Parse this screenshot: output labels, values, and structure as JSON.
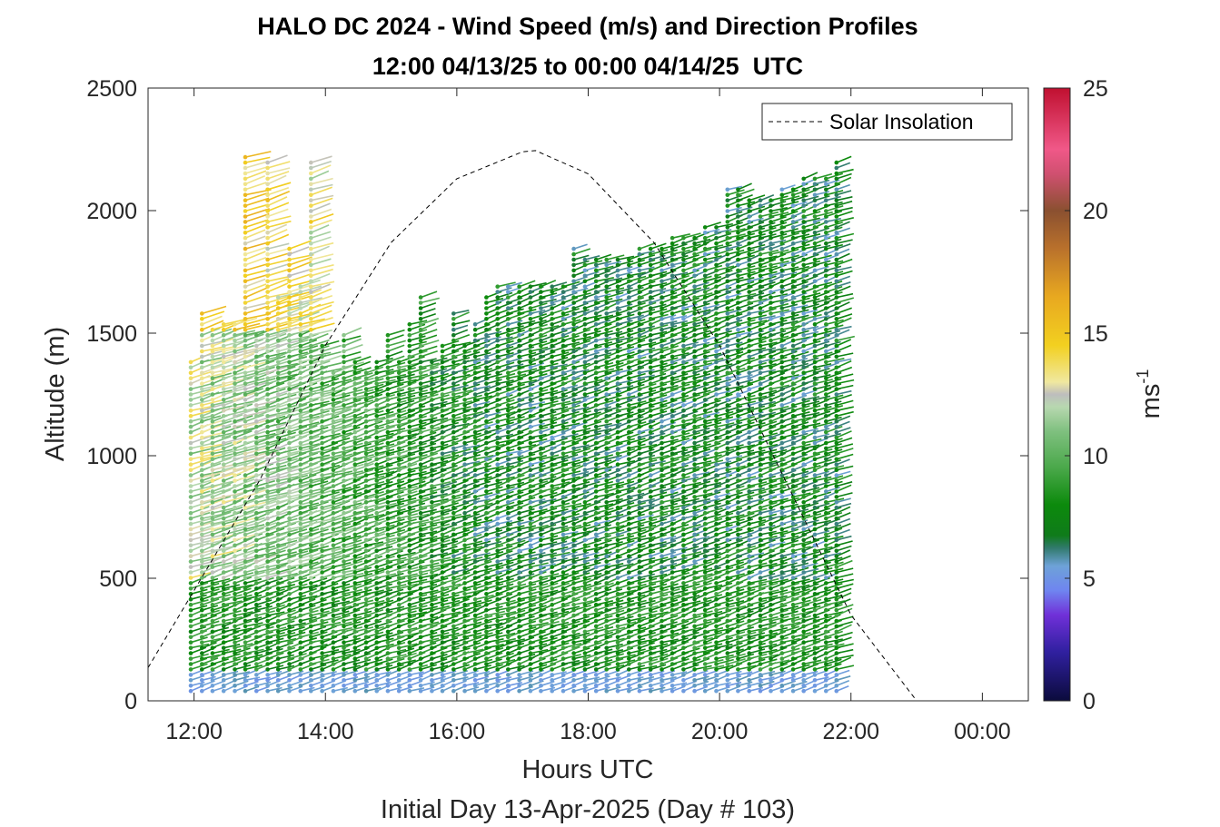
{
  "chart_data": {
    "type": "scatter",
    "title": "HALO DC 2024 - Wind Speed (m/s) and Direction Profiles",
    "subtitle": "12:00 04/13/25 to 00:00 04/14/25  UTC",
    "xlabel": "Hours UTC",
    "footer": "Initial Day 13-Apr-2025 (Day # 103)",
    "ylabel": "Altitude (m)",
    "colorbar_label": "ms",
    "colorbar_label_sup": "-1",
    "xlim": [
      11.3,
      24.7
    ],
    "ylim": [
      0,
      2500
    ],
    "x_ticks": [
      12,
      14,
      16,
      18,
      20,
      22,
      24
    ],
    "x_tick_labels": [
      "12:00",
      "14:00",
      "16:00",
      "18:00",
      "20:00",
      "22:00",
      "00:00"
    ],
    "y_ticks": [
      0,
      500,
      1000,
      1500,
      2000,
      2500
    ],
    "y_tick_labels": [
      "0",
      "500",
      "1000",
      "1500",
      "2000",
      "2500"
    ],
    "colorbar_range": [
      0,
      25
    ],
    "colorbar_ticks": [
      0,
      5,
      10,
      15,
      20,
      25
    ],
    "colorbar_tick_labels": [
      "0",
      "5",
      "10",
      "15",
      "20",
      "25"
    ],
    "legend": {
      "position": "top-right",
      "entries": [
        "Solar Insolation"
      ]
    },
    "solar_insolation": {
      "style": "dashed",
      "color": "#000000",
      "x": [
        11.3,
        12.0,
        13.0,
        14.0,
        15.0,
        16.0,
        17.0,
        17.2,
        18.0,
        19.0,
        20.0,
        21.0,
        22.0,
        23.0,
        23.5,
        24.7
      ],
      "y": [
        135,
        450,
        900,
        1450,
        1870,
        2130,
        2240,
        2245,
        2150,
        1870,
        1450,
        900,
        350,
        0,
        0,
        0
      ]
    },
    "wind_profiles": {
      "times": [
        11.95,
        12.12,
        12.28,
        12.45,
        12.62,
        12.78,
        12.95,
        13.12,
        13.28,
        13.45,
        13.62,
        13.78,
        13.95,
        14.12,
        14.28,
        14.45,
        14.62,
        14.78,
        14.95,
        15.12,
        15.28,
        15.45,
        15.62,
        15.78,
        15.95,
        16.12,
        16.28,
        16.45,
        16.62,
        16.78,
        16.95,
        17.12,
        17.28,
        17.45,
        17.62,
        17.78,
        17.95,
        18.12,
        18.28,
        18.45,
        18.62,
        18.78,
        18.95,
        19.12,
        19.28,
        19.45,
        19.62,
        19.78,
        19.95,
        20.12,
        20.28,
        20.45,
        20.62,
        20.78,
        20.95,
        21.12,
        21.28,
        21.45,
        21.62,
        21.78
      ],
      "top_altitudes": [
        1400,
        1600,
        1520,
        1550,
        1550,
        2230,
        1500,
        2200,
        1650,
        1850,
        1700,
        2200,
        1450,
        1350,
        1500,
        1400,
        1350,
        1400,
        1500,
        1400,
        1550,
        1650,
        1400,
        1450,
        1600,
        1450,
        1550,
        1650,
        1700,
        1700,
        1700,
        1700,
        1700,
        1700,
        1700,
        1850,
        1800,
        1800,
        1800,
        1800,
        1800,
        1850,
        1850,
        1850,
        1900,
        1900,
        1900,
        1950,
        1950,
        2100,
        2100,
        2050,
        2050,
        2050,
        2100,
        2100,
        2150,
        2150,
        2150,
        2200
      ],
      "direction_deg_from": 300,
      "low_level_speed_ms": 5,
      "boundary_layer_speed_ms": 7,
      "upper_speed_early_ms": 14,
      "upper_speed_late_ms": 9
    }
  }
}
